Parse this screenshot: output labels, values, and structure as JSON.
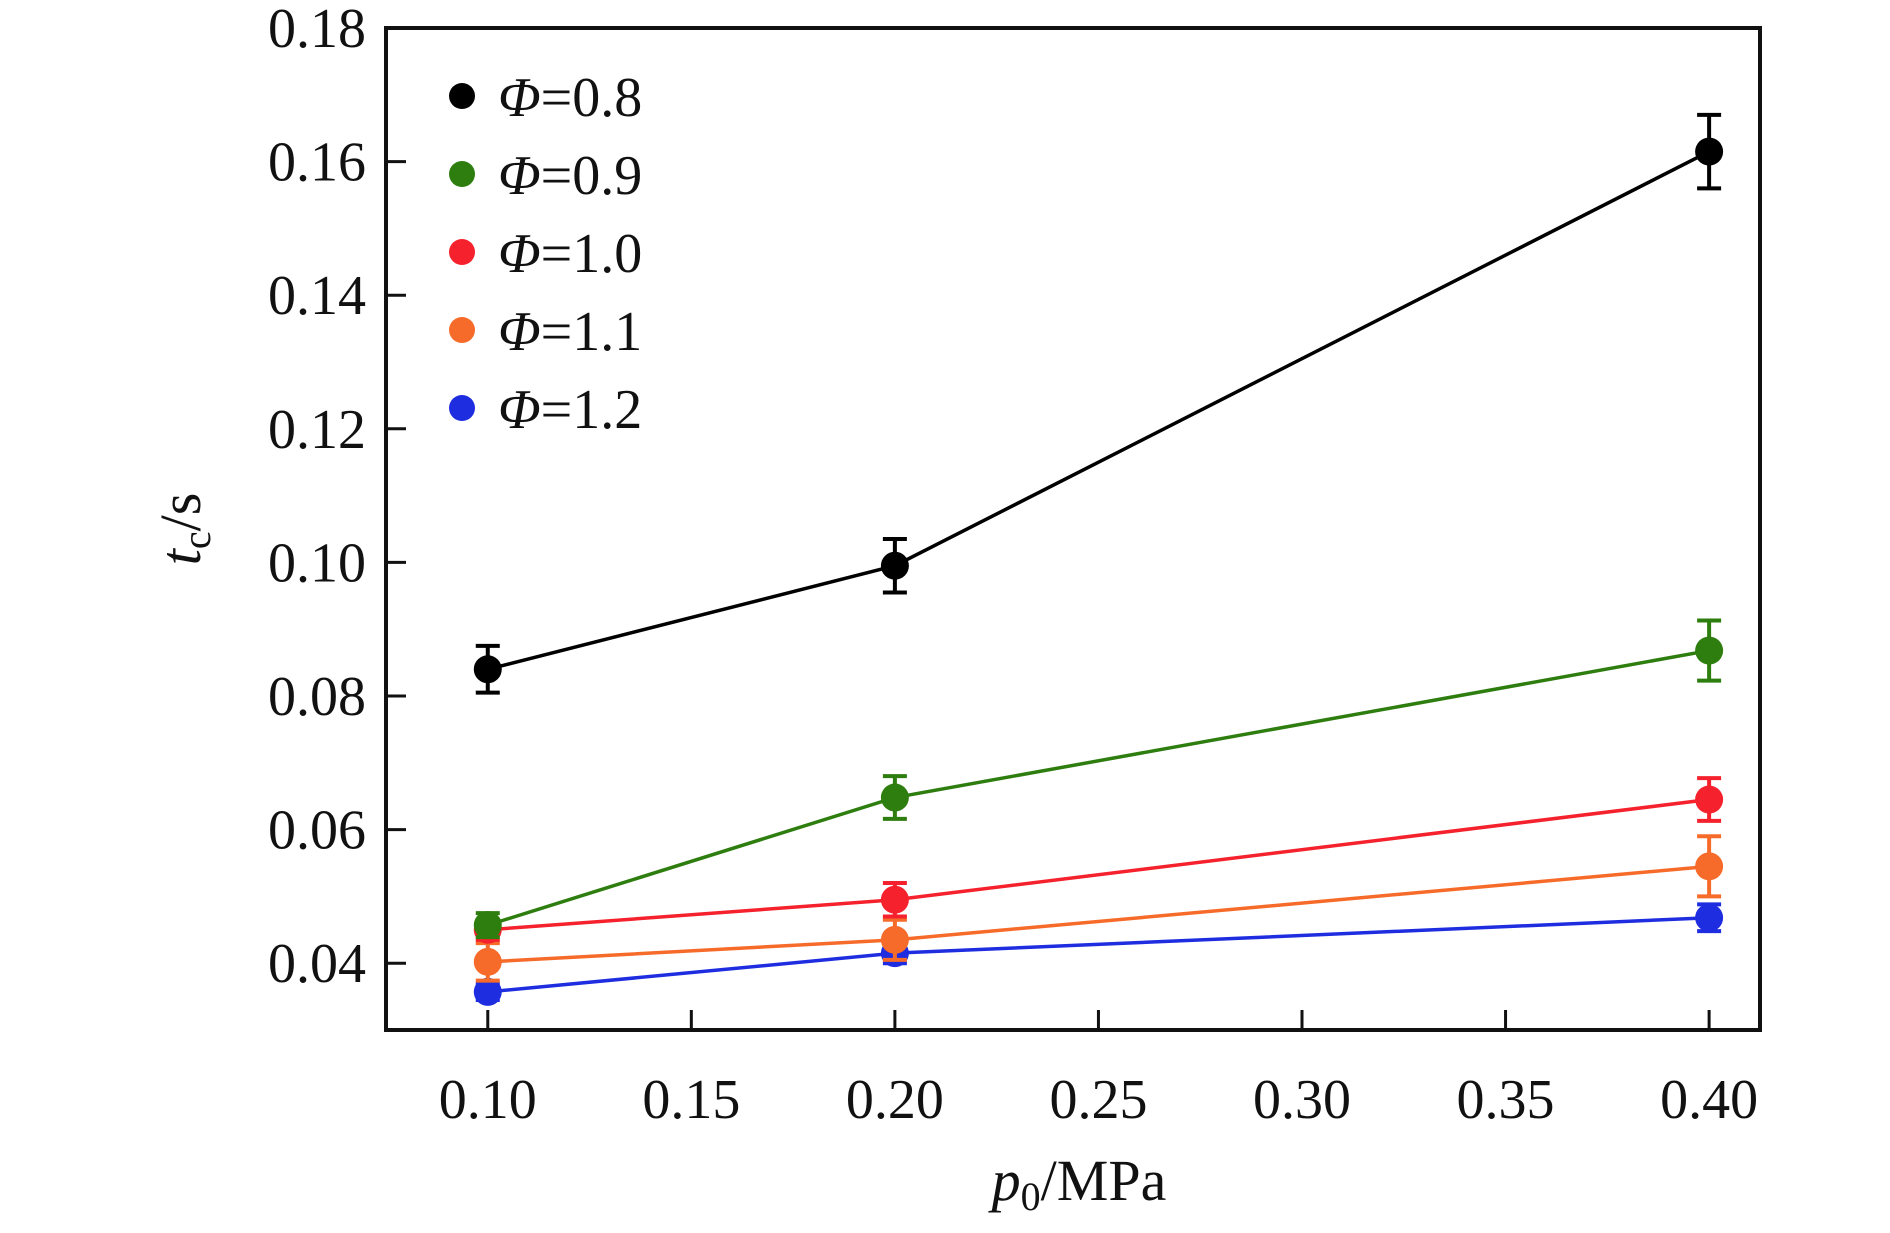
{
  "chart_data": {
    "type": "line",
    "title": "",
    "xlabel": {
      "var": "p",
      "sub": "0",
      "unit": "/MPa"
    },
    "ylabel": {
      "var": "t",
      "sub": "c",
      "unit": "/s"
    },
    "xlim": [
      0.075,
      0.4125
    ],
    "ylim": [
      0.03,
      0.18
    ],
    "x_ticks": [
      0.1,
      0.15,
      0.2,
      0.25,
      0.3,
      0.35,
      0.4
    ],
    "x_tick_labels": [
      "0.10",
      "0.15",
      "0.20",
      "0.25",
      "0.30",
      "0.35",
      "0.40"
    ],
    "y_ticks": [
      0.04,
      0.06,
      0.08,
      0.1,
      0.12,
      0.14,
      0.16,
      0.18
    ],
    "y_tick_labels": [
      "0.04",
      "0.06",
      "0.08",
      "0.10",
      "0.12",
      "0.14",
      "0.16",
      "0.18"
    ],
    "grid": false,
    "legend_position": "top-left",
    "x": [
      0.1,
      0.2,
      0.4
    ],
    "series": [
      {
        "name": "Φ=0.8",
        "symbol": "Φ",
        "value_text": "=0.8",
        "color": "#000000",
        "values": [
          0.084,
          0.0995,
          0.1615
        ],
        "errors": [
          0.0035,
          0.004,
          0.0055
        ]
      },
      {
        "name": "Φ=0.9",
        "symbol": "Φ",
        "value_text": "=0.9",
        "color": "#2e7d0f",
        "values": [
          0.0457,
          0.0648,
          0.0868
        ],
        "errors": [
          0.0018,
          0.0032,
          0.0045
        ]
      },
      {
        "name": "Φ=1.0",
        "symbol": "Φ",
        "value_text": "=1.0",
        "color": "#f5222d",
        "values": [
          0.045,
          0.0495,
          0.0645
        ],
        "errors": [
          0.0015,
          0.0025,
          0.0032
        ]
      },
      {
        "name": "Φ=1.1",
        "symbol": "Φ",
        "value_text": "=1.1",
        "color": "#f76b2a",
        "values": [
          0.0402,
          0.0435,
          0.0545
        ],
        "errors": [
          0.0028,
          0.003,
          0.0045
        ]
      },
      {
        "name": "Φ=1.2",
        "symbol": "Φ",
        "value_text": "=1.2",
        "color": "#1f2de0",
        "values": [
          0.0357,
          0.0415,
          0.0468
        ],
        "errors": [
          0.0012,
          0.0015,
          0.002
        ]
      }
    ]
  }
}
